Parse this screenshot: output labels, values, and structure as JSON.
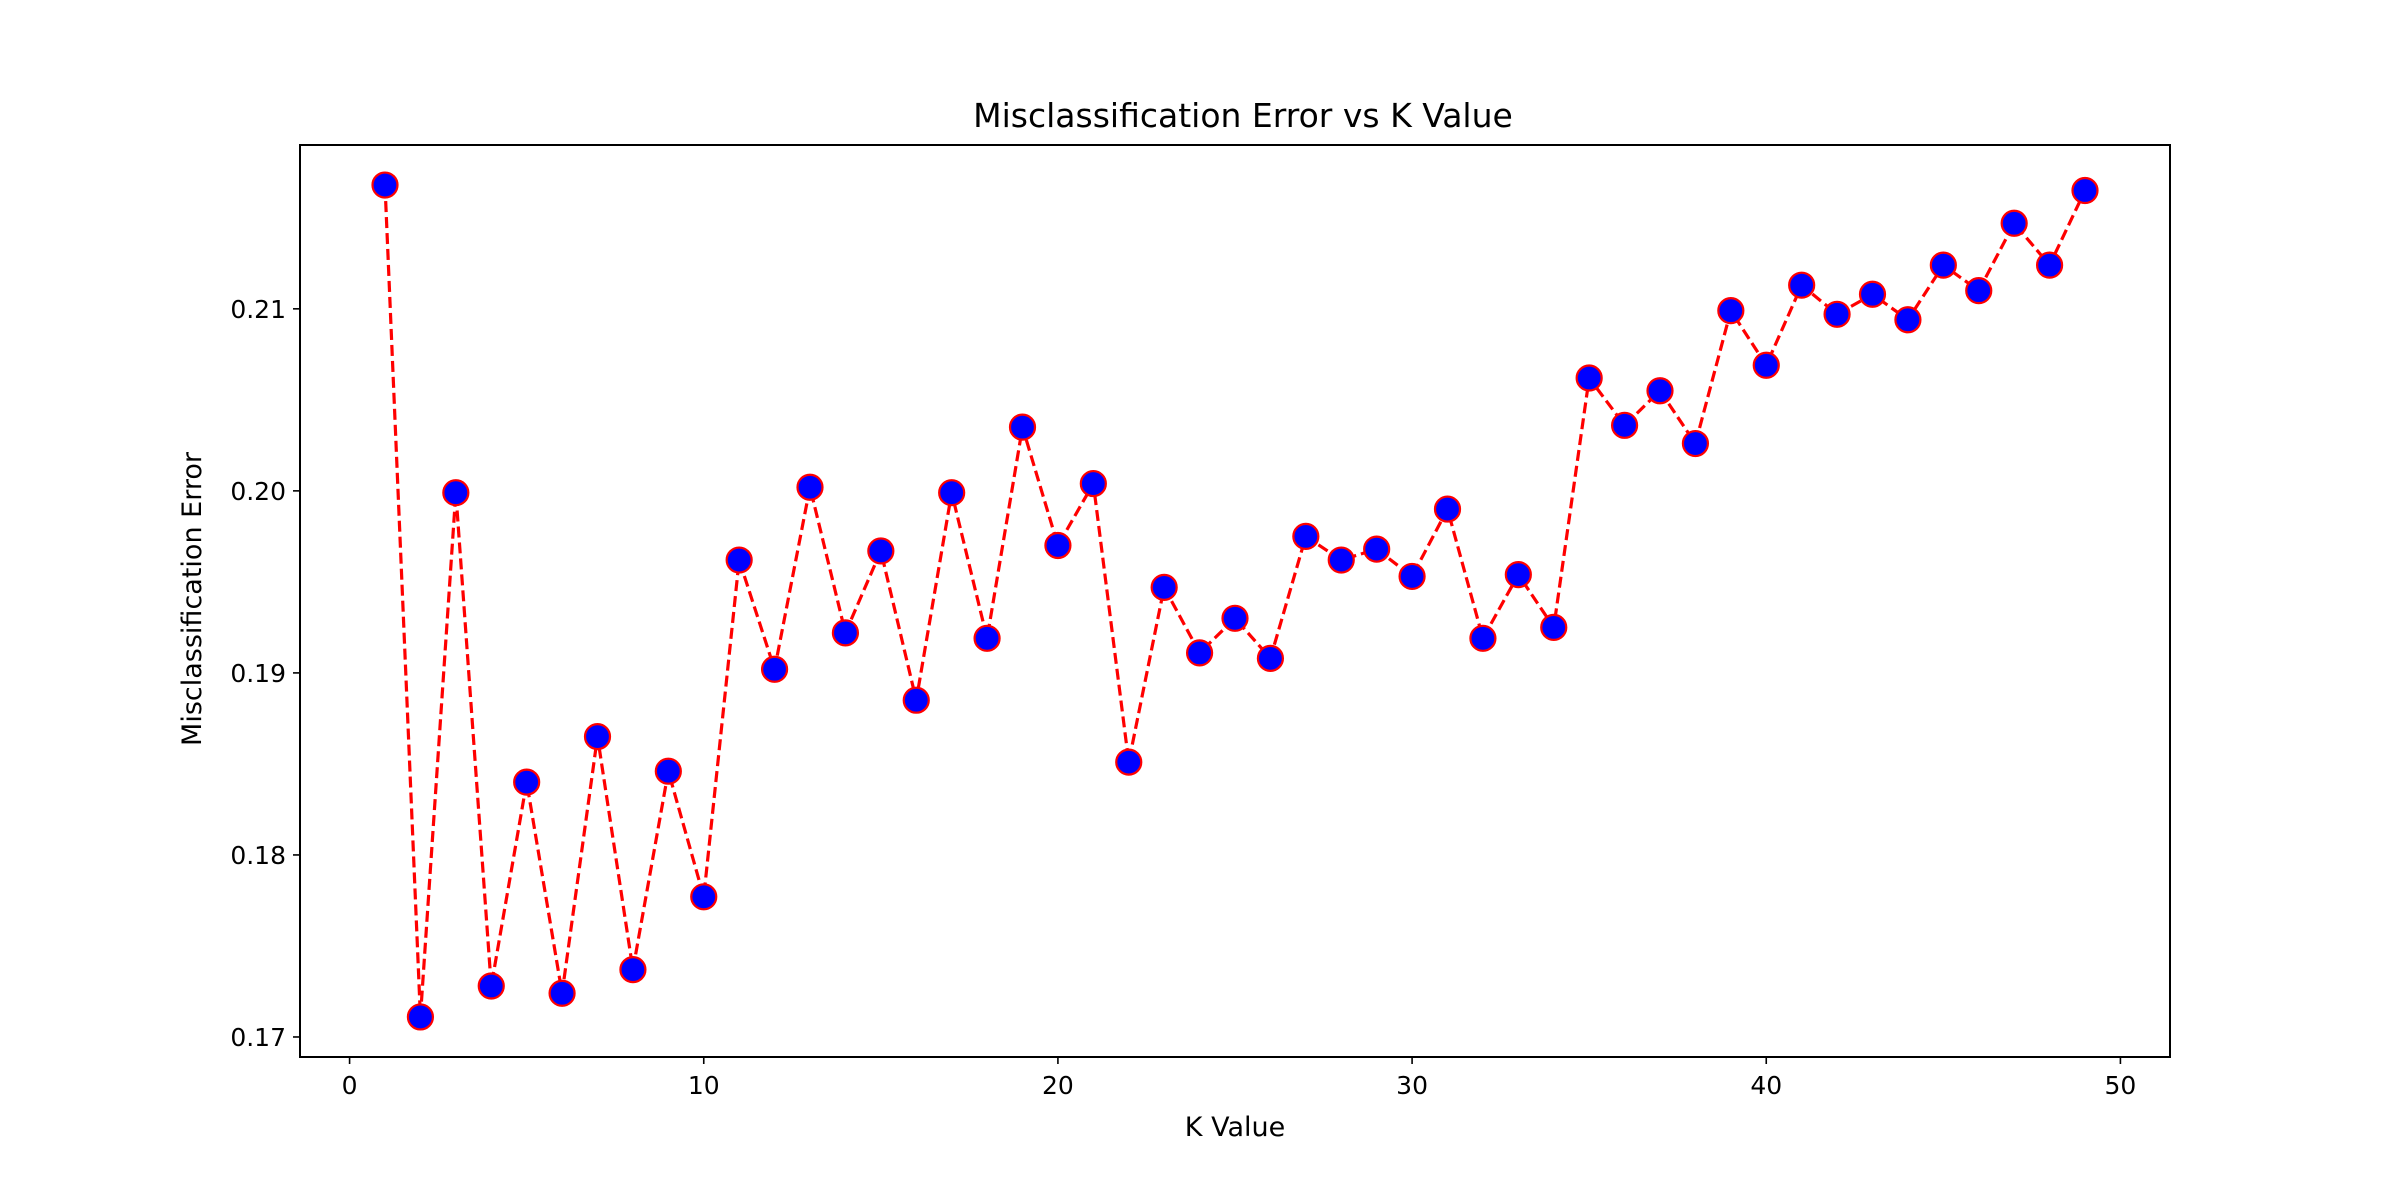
{
  "chart_data": {
    "type": "line",
    "title": "Misclassification Error vs K Value",
    "xlabel": "K Value",
    "ylabel": "Misclassification Error",
    "xlim": [
      -1.4,
      51.4
    ],
    "ylim": [
      0.1689,
      0.219
    ],
    "xticks": [
      0,
      10,
      20,
      30,
      40,
      50
    ],
    "yticks": [
      0.17,
      0.18,
      0.19,
      0.2,
      0.21
    ],
    "xtick_labels": [
      "0",
      "10",
      "20",
      "30",
      "40",
      "50"
    ],
    "ytick_labels": [
      "0.17",
      "0.18",
      "0.19",
      "0.20",
      "0.21"
    ],
    "grid": false,
    "line_style": "dashed",
    "line_color": "#ff0000",
    "marker_face_color": "#0000ff",
    "marker_edge_color": "#ff0000",
    "series": [
      {
        "x": [
          1,
          2,
          3,
          4,
          5,
          6,
          7,
          8,
          9,
          10,
          11,
          12,
          13,
          14,
          15,
          16,
          17,
          18,
          19,
          20,
          21,
          22,
          23,
          24,
          25,
          26,
          27,
          28,
          29,
          30,
          31,
          32,
          33,
          34,
          35,
          36,
          37,
          38,
          39,
          40,
          41,
          42,
          43,
          44,
          45,
          46,
          47,
          48,
          49
        ],
        "values": [
          0.2168,
          0.1711,
          0.1999,
          0.1728,
          0.184,
          0.1724,
          0.1865,
          0.1737,
          0.1846,
          0.1777,
          0.1962,
          0.1902,
          0.2002,
          0.1922,
          0.1967,
          0.1885,
          0.1999,
          0.1919,
          0.2035,
          0.197,
          0.2004,
          0.1851,
          0.1947,
          0.1911,
          0.193,
          0.1908,
          0.1975,
          0.1962,
          0.1968,
          0.1953,
          0.199,
          0.1919,
          0.1954,
          0.1925,
          0.2062,
          0.2036,
          0.2055,
          0.2026,
          0.2099,
          0.2069,
          0.2113,
          0.2097,
          0.2108,
          0.2094,
          0.2124,
          0.211,
          0.2147,
          0.2124,
          0.2165
        ]
      }
    ]
  }
}
